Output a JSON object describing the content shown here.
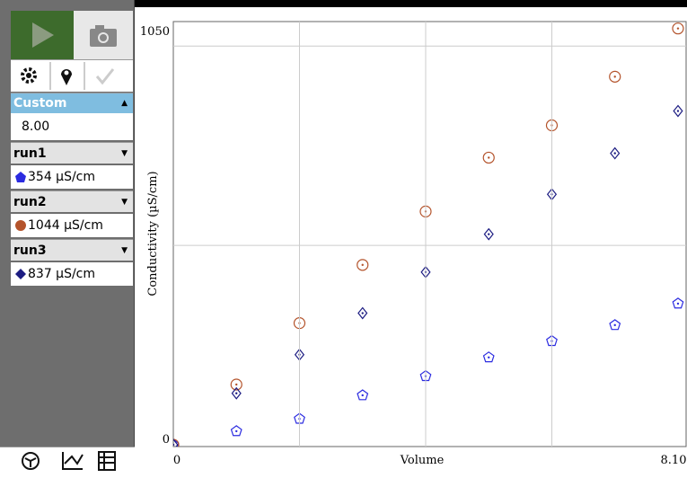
{
  "sidebar": {
    "custom": {
      "label": "Custom",
      "value": "8.00"
    },
    "readings": [
      "354 µS/cm",
      "1044 µS/cm",
      "837 µS/cm"
    ]
  },
  "chart_data": {
    "type": "scatter",
    "x_label": "Volume",
    "y_label": "Conductivity (µS/cm)",
    "x": [
      0,
      1,
      2,
      3,
      4,
      5,
      6,
      7,
      8
    ],
    "series": [
      {
        "name": "run1",
        "color": "#2b2be0",
        "marker": "pentagon",
        "values": [
          0,
          34,
          65,
          124,
          172,
          219,
          260,
          300,
          354
        ]
      },
      {
        "name": "run2",
        "color": "#b4532b",
        "marker": "circle",
        "values": [
          0,
          151,
          305,
          451,
          585,
          720,
          801,
          923,
          1044
        ]
      },
      {
        "name": "run3",
        "color": "#1c1c82",
        "marker": "diamond",
        "values": [
          0,
          129,
          226,
          330,
          433,
          528,
          628,
          731,
          837
        ]
      }
    ],
    "xlim": [
      0,
      8.1
    ],
    "xticks": [
      0,
      {
        "value": 8.1,
        "label": "8.10"
      }
    ],
    "ylim": [
      0,
      1050
    ],
    "yticks": [
      0,
      1050
    ],
    "xgrid": [
      2,
      4,
      6
    ],
    "ygrid": [
      500,
      1000
    ],
    "grid": true
  }
}
